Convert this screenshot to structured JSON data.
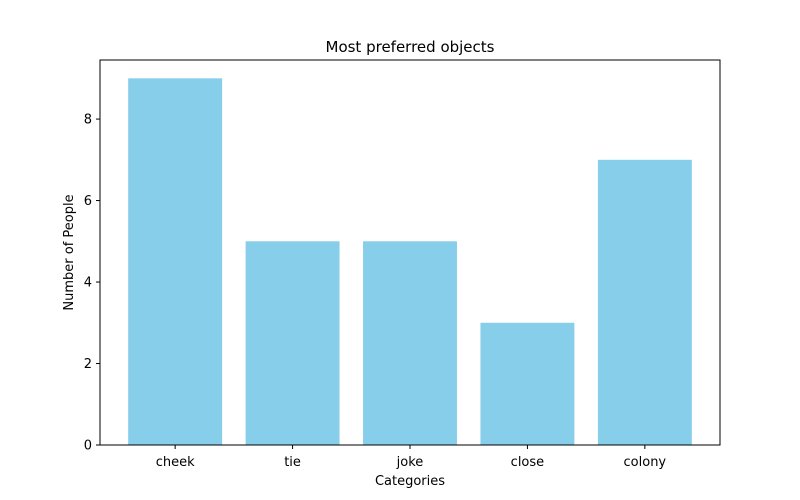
{
  "chart_data": {
    "type": "bar",
    "title": "Most preferred objects",
    "xlabel": "Categories",
    "ylabel": "Number of People",
    "categories": [
      "cheek",
      "tie",
      "joke",
      "close",
      "colony"
    ],
    "values": [
      9,
      5,
      5,
      3,
      7
    ],
    "ylim": [
      0,
      9.45
    ],
    "yticks": [
      0,
      2,
      4,
      6,
      8
    ],
    "bar_color": "#87CEEB",
    "grid": false,
    "legend": "none"
  }
}
